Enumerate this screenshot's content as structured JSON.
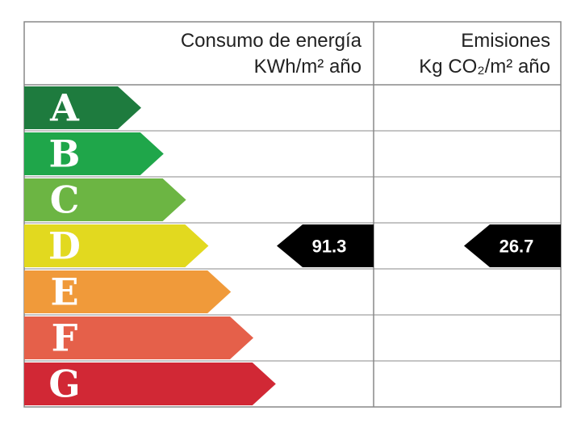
{
  "header": {
    "energy_title": "Consumo de energía",
    "energy_unit": "KWh/m² año",
    "emissions_title": "Emisiones",
    "emissions_unit": "Kg CO₂/m² año"
  },
  "grades": [
    {
      "letter": "A",
      "color": "#1e7b3e"
    },
    {
      "letter": "B",
      "color": "#1fa64a"
    },
    {
      "letter": "C",
      "color": "#6cb543"
    },
    {
      "letter": "D",
      "color": "#e2d91f",
      "energy": "91.3",
      "emissions": "26.7"
    },
    {
      "letter": "E",
      "color": "#f09a3a"
    },
    {
      "letter": "F",
      "color": "#e5604a"
    },
    {
      "letter": "G",
      "color": "#d12835"
    }
  ]
}
